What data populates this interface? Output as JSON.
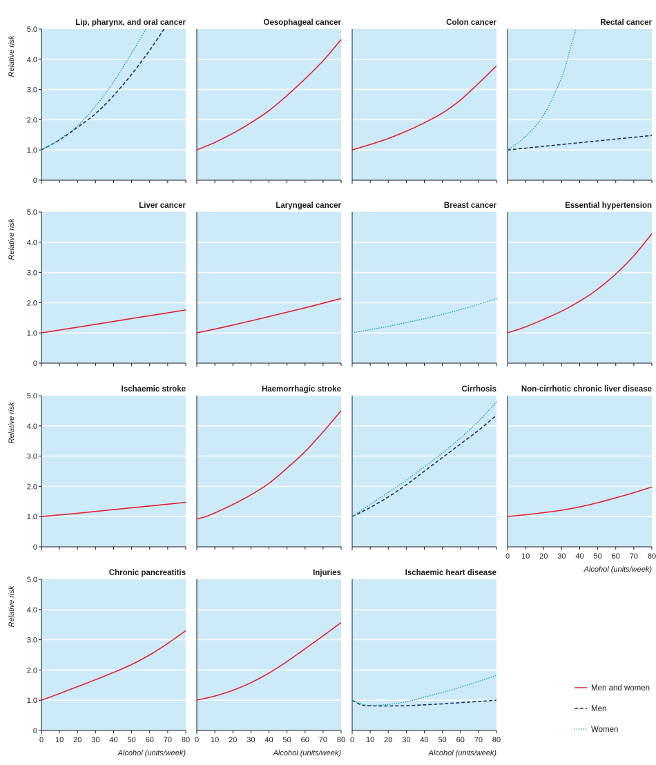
{
  "figure": {
    "ylabel": "Relative risk",
    "xlabel": "Alcohol (units/week)",
    "y_ticks": [
      "0",
      "1.0",
      "2.0",
      "3.0",
      "4.0",
      "5.0"
    ],
    "x_ticks": [
      "0",
      "10",
      "20",
      "30",
      "40",
      "50",
      "60",
      "70",
      "80"
    ],
    "legend": [
      {
        "label": "Men and women",
        "color": "#e5202e",
        "style": "solid"
      },
      {
        "label": "Men",
        "color": "#1d2f5e",
        "style": "dashed"
      },
      {
        "label": "Women",
        "color": "#1aa6b7",
        "style": "dotted"
      }
    ]
  },
  "chart_data": [
    {
      "type": "line",
      "title": "Lip, pharynx, and oral cancer",
      "xlim": [
        0,
        80
      ],
      "ylim": [
        0,
        5
      ],
      "series": [
        {
          "name": "Men",
          "x": [
            0,
            10,
            20,
            30,
            40,
            50,
            60,
            68
          ],
          "y": [
            1.0,
            1.33,
            1.75,
            2.2,
            2.8,
            3.5,
            4.3,
            5.0
          ]
        },
        {
          "name": "Women",
          "x": [
            0,
            10,
            20,
            30,
            40,
            50,
            58
          ],
          "y": [
            1.0,
            1.35,
            1.8,
            2.45,
            3.25,
            4.2,
            5.0
          ]
        }
      ]
    },
    {
      "type": "line",
      "title": "Oesophageal cancer",
      "xlim": [
        0,
        80
      ],
      "ylim": [
        0,
        5
      ],
      "series": [
        {
          "name": "Men and women",
          "x": [
            0,
            10,
            20,
            30,
            40,
            50,
            60,
            70,
            80
          ],
          "y": [
            1.0,
            1.25,
            1.55,
            1.9,
            2.3,
            2.8,
            3.35,
            3.95,
            4.65
          ]
        }
      ]
    },
    {
      "type": "line",
      "title": "Colon cancer",
      "xlim": [
        0,
        80
      ],
      "ylim": [
        0,
        5
      ],
      "series": [
        {
          "name": "Men and women",
          "x": [
            0,
            10,
            20,
            30,
            40,
            50,
            60,
            70,
            80
          ],
          "y": [
            1.0,
            1.18,
            1.38,
            1.62,
            1.9,
            2.22,
            2.65,
            3.2,
            3.78
          ]
        }
      ]
    },
    {
      "type": "line",
      "title": "Rectal cancer",
      "xlim": [
        0,
        80
      ],
      "ylim": [
        0,
        5
      ],
      "series": [
        {
          "name": "Men",
          "x": [
            0,
            20,
            40,
            60,
            80
          ],
          "y": [
            1.0,
            1.12,
            1.24,
            1.36,
            1.48
          ]
        },
        {
          "name": "Women",
          "x": [
            0,
            10,
            20,
            30,
            35,
            38
          ],
          "y": [
            1.0,
            1.45,
            2.15,
            3.4,
            4.4,
            5.0
          ]
        }
      ]
    },
    {
      "type": "line",
      "title": "Liver cancer",
      "xlim": [
        0,
        80
      ],
      "ylim": [
        0,
        5
      ],
      "series": [
        {
          "name": "Men and women",
          "x": [
            0,
            20,
            40,
            60,
            80
          ],
          "y": [
            1.0,
            1.19,
            1.38,
            1.57,
            1.76
          ]
        }
      ]
    },
    {
      "type": "line",
      "title": "Laryngeal cancer",
      "xlim": [
        0,
        80
      ],
      "ylim": [
        0,
        5
      ],
      "series": [
        {
          "name": "Men and women",
          "x": [
            0,
            20,
            40,
            60,
            80
          ],
          "y": [
            1.0,
            1.26,
            1.54,
            1.83,
            2.14
          ]
        }
      ]
    },
    {
      "type": "line",
      "title": "Breast cancer",
      "xlim": [
        0,
        80
      ],
      "ylim": [
        0,
        5
      ],
      "series": [
        {
          "name": "Women",
          "x": [
            0,
            20,
            40,
            60,
            80
          ],
          "y": [
            1.0,
            1.22,
            1.47,
            1.77,
            2.13
          ]
        }
      ]
    },
    {
      "type": "line",
      "title": "Essential hypertension",
      "xlim": [
        0,
        80
      ],
      "ylim": [
        0,
        5
      ],
      "series": [
        {
          "name": "Men and women",
          "x": [
            0,
            10,
            20,
            30,
            40,
            50,
            60,
            70,
            80
          ],
          "y": [
            1.0,
            1.2,
            1.45,
            1.72,
            2.05,
            2.45,
            2.95,
            3.55,
            4.28
          ]
        }
      ]
    },
    {
      "type": "line",
      "title": "Ischaemic stroke",
      "xlim": [
        0,
        80
      ],
      "ylim": [
        0,
        5
      ],
      "series": [
        {
          "name": "Men and women",
          "x": [
            0,
            20,
            40,
            60,
            80
          ],
          "y": [
            1.0,
            1.11,
            1.23,
            1.35,
            1.47
          ]
        }
      ]
    },
    {
      "type": "line",
      "title": "Haemorrhagic stroke",
      "xlim": [
        0,
        80
      ],
      "ylim": [
        0,
        5
      ],
      "series": [
        {
          "name": "Men and women",
          "x": [
            0,
            5,
            10,
            20,
            30,
            40,
            50,
            60,
            70,
            80
          ],
          "y": [
            0.92,
            1.0,
            1.12,
            1.4,
            1.72,
            2.1,
            2.6,
            3.15,
            3.8,
            4.5
          ]
        }
      ]
    },
    {
      "type": "line",
      "title": "Cirrhosis",
      "xlim": [
        0,
        80
      ],
      "ylim": [
        0,
        5
      ],
      "series": [
        {
          "name": "Men",
          "x": [
            0,
            10,
            20,
            30,
            40,
            50,
            60,
            70,
            80
          ],
          "y": [
            1.0,
            1.3,
            1.65,
            2.05,
            2.5,
            2.95,
            3.4,
            3.85,
            4.35
          ]
        },
        {
          "name": "Women",
          "x": [
            0,
            10,
            20,
            30,
            40,
            50,
            60,
            70,
            80
          ],
          "y": [
            1.0,
            1.4,
            1.8,
            2.2,
            2.65,
            3.1,
            3.6,
            4.15,
            4.8
          ]
        }
      ]
    },
    {
      "type": "line",
      "title": "Non-cirrhotic chronic liver disease",
      "xlim": [
        0,
        80
      ],
      "ylim": [
        0,
        5
      ],
      "series": [
        {
          "name": "Men and women",
          "x": [
            0,
            10,
            20,
            30,
            40,
            50,
            60,
            70,
            80
          ],
          "y": [
            1.0,
            1.06,
            1.13,
            1.21,
            1.32,
            1.46,
            1.62,
            1.79,
            1.98
          ]
        }
      ]
    },
    {
      "type": "line",
      "title": "Chronic pancreatitis",
      "xlim": [
        0,
        80
      ],
      "ylim": [
        0,
        5
      ],
      "series": [
        {
          "name": "Men and women",
          "x": [
            0,
            10,
            20,
            30,
            40,
            50,
            60,
            70,
            80
          ],
          "y": [
            1.0,
            1.22,
            1.45,
            1.68,
            1.92,
            2.18,
            2.5,
            2.88,
            3.3
          ]
        }
      ]
    },
    {
      "type": "line",
      "title": "Injuries",
      "xlim": [
        0,
        80
      ],
      "ylim": [
        0,
        5
      ],
      "series": [
        {
          "name": "Men and women",
          "x": [
            0,
            10,
            20,
            30,
            40,
            50,
            60,
            70,
            80
          ],
          "y": [
            1.0,
            1.14,
            1.33,
            1.58,
            1.9,
            2.28,
            2.7,
            3.13,
            3.57
          ]
        }
      ]
    },
    {
      "type": "line",
      "title": "Ischaemic heart disease",
      "xlim": [
        0,
        80
      ],
      "ylim": [
        0,
        5
      ],
      "series": [
        {
          "name": "Men",
          "x": [
            0,
            5,
            10,
            20,
            30,
            40,
            50,
            60,
            70,
            80
          ],
          "y": [
            1.0,
            0.85,
            0.82,
            0.81,
            0.82,
            0.85,
            0.88,
            0.92,
            0.96,
            1.0
          ]
        },
        {
          "name": "Women",
          "x": [
            0,
            5,
            10,
            20,
            30,
            40,
            50,
            60,
            70,
            80
          ],
          "y": [
            1.0,
            0.88,
            0.83,
            0.86,
            0.95,
            1.1,
            1.26,
            1.43,
            1.62,
            1.82
          ]
        }
      ]
    }
  ]
}
